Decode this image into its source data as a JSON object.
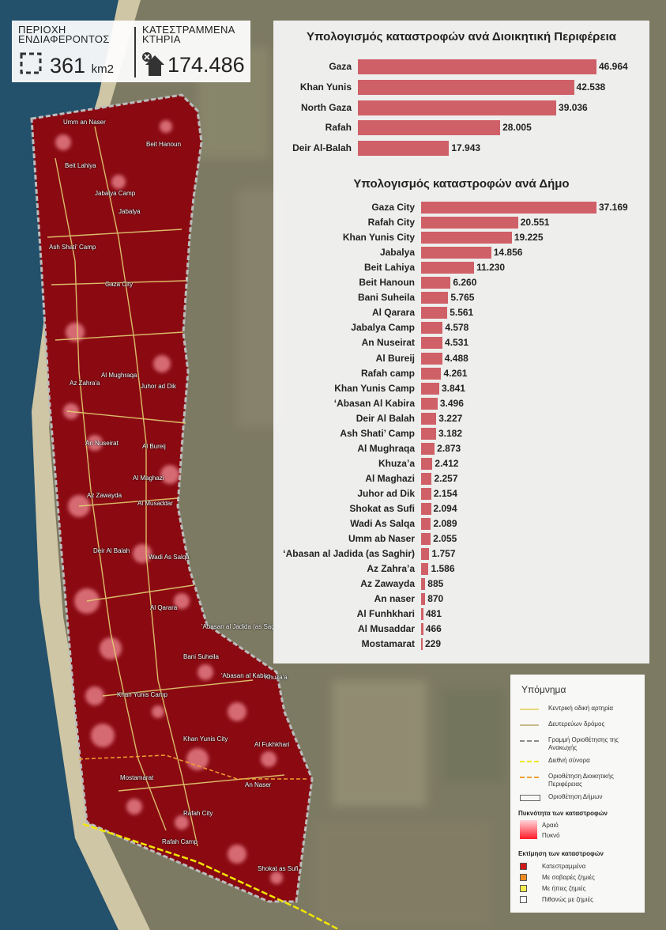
{
  "stats": {
    "area_label": "ΠΕΡΙΟΧΗ\nΕΝΔΙΑΦΕΡΟΝΤΟΣ",
    "area_value": "361",
    "area_unit": "km2",
    "buildings_label": "ΚΑΤΕΣΤΡΑΜΜΕΝΑ\nΚΤΗΡΙΑ",
    "buildings_value": "174.486"
  },
  "chart_regions": {
    "title": "Υπολογισμός καταστροφών ανά Διοικητική Περιφέρεια",
    "labels": [
      "Gaza",
      "Khan Yunis",
      "North Gaza",
      "Rafah",
      "Deir Al-Balah"
    ],
    "display_values": [
      "46.964",
      "42.538",
      "39.036",
      "28.005",
      "17.943"
    ]
  },
  "chart_municipalities": {
    "title": "Υπολογισμός καταστροφών ανά Δήμο",
    "labels": [
      "Gaza City",
      "Rafah City",
      "Khan Yunis City",
      "Jabalya",
      "Beit Lahiya",
      "Beit Hanoun",
      "Bani Suheila",
      "Al Qarara",
      "Jabalya Camp",
      "An Nuseirat",
      "Al Bureij",
      "Rafah camp",
      "Khan Yunis Camp",
      "‘Abasan Al Kabira",
      "Deir Al Balah",
      "Ash Shati’ Camp",
      "Al Mughraqa",
      "Khuza’a",
      "Al Maghazi",
      "Juhor ad Dik",
      "Shokat as Sufi",
      "Wadi As Salqa",
      "Umm ab Naser",
      "‘Abasan al Jadida (as Saghir)",
      "Az Zahra’a",
      "Az Zawayda",
      "An naser",
      "Al Funhkhari",
      "Al Musaddar",
      "Mostamarat"
    ],
    "display_values": [
      "37.169",
      "20.551",
      "19.225",
      "14.856",
      "11.230",
      "6.260",
      "5.765",
      "5.561",
      "4.578",
      "4.531",
      "4.488",
      "4.261",
      "3.841",
      "3.496",
      "3.227",
      "3.182",
      "2.873",
      "2.412",
      "2.257",
      "2.154",
      "2.094",
      "2.089",
      "2.055",
      "1.757",
      "1.586",
      "885",
      "870",
      "481",
      "466",
      "229"
    ]
  },
  "chart_data": [
    {
      "type": "bar",
      "title": "Υπολογισμός καταστροφών ανά Διοικητική Περιφέρεια",
      "categories": [
        "Gaza",
        "Khan Yunis",
        "North Gaza",
        "Rafah",
        "Deir Al-Balah"
      ],
      "values": [
        46964,
        42538,
        39036,
        28005,
        17943
      ],
      "bar_color": "#d06067"
    },
    {
      "type": "bar",
      "title": "Υπολογισμός καταστροφών ανά Δήμο",
      "categories": [
        "Gaza City",
        "Rafah City",
        "Khan Yunis City",
        "Jabalya",
        "Beit Lahiya",
        "Beit Hanoun",
        "Bani Suheila",
        "Al Qarara",
        "Jabalya Camp",
        "An Nuseirat",
        "Al Bureij",
        "Rafah camp",
        "Khan Yunis Camp",
        "‘Abasan Al Kabira",
        "Deir Al Balah",
        "Ash Shati’ Camp",
        "Al Mughraqa",
        "Khuza’a",
        "Al Maghazi",
        "Juhor ad Dik",
        "Shokat as Sufi",
        "Wadi As Salqa",
        "Umm ab Naser",
        "‘Abasan al Jadida (as Saghir)",
        "Az Zahra’a",
        "Az Zawayda",
        "An naser",
        "Al Funhkhari",
        "Al Musaddar",
        "Mostamarat"
      ],
      "values": [
        37169,
        20551,
        19225,
        14856,
        11230,
        6260,
        5765,
        5561,
        4578,
        4531,
        4488,
        4261,
        3841,
        3496,
        3227,
        3182,
        2873,
        2412,
        2257,
        2154,
        2094,
        2089,
        2055,
        1757,
        1586,
        885,
        870,
        481,
        466,
        229
      ],
      "bar_color": "#d06067"
    }
  ],
  "map_labels": [
    "Umm an Naser",
    "Beit Hanoun",
    "Beit Lahiya",
    "Jabalya Camp",
    "Jabalya",
    "Ash Shati' Camp",
    "Gaza City",
    "Al Mughraqa",
    "Az Zahra'a",
    "Juhor ad Dik",
    "An Nuseirat",
    "Al Bureij",
    "Al Maghazi",
    "Az Zawayda",
    "Al Musaddar",
    "Deir Al Balah",
    "Wadi As Salqa",
    "Al Qarara",
    "'Abasan al Jadida (as Saghir)",
    "Bani Suheila",
    "'Abasan al Kabira",
    "Khuza'a",
    "Khan Yunis Camp",
    "Khan Yunis City",
    "Al Fukhkhari",
    "Mostamarat",
    "An Naser",
    "Rafah City",
    "Rafah Camp",
    "Shokat as Sufi"
  ],
  "legend": {
    "title": "Υπόμνημα",
    "items": [
      {
        "label": "Κεντρική οδική αρτηρία",
        "color": "#e8d87a"
      },
      {
        "label": "Δευτερεύων δρόμος",
        "color": "#c9b98a"
      },
      {
        "label": "Γραμμή Οριοθέτησης της Ανακωχής",
        "color": "#8a8a8a"
      },
      {
        "label": "Διεθνή σύνορα",
        "color": "#f2e600"
      },
      {
        "label": "Οριοθέτηση Διοικητικής Περιφέρειας",
        "color": "#f0a030"
      },
      {
        "label": "Οριοθέτηση Δήμων",
        "color": "#666666"
      }
    ],
    "density_title": "Πυκνότητα των καταστροφών",
    "density_low": "Αραιό",
    "density_high": "Πυκνό",
    "damage_title": "Εκτίμηση των καταστροφών",
    "damage_items": [
      {
        "label": "Κατεστραμμένα",
        "color": "#d01818"
      },
      {
        "label": "Με σοβαρές ζημιές",
        "color": "#f08c1e"
      },
      {
        "label": "Με ήπιες ζημιές",
        "color": "#f5ec50"
      },
      {
        "label": "Πιθανώς με ζημιές",
        "color": "#ffffff"
      }
    ]
  }
}
